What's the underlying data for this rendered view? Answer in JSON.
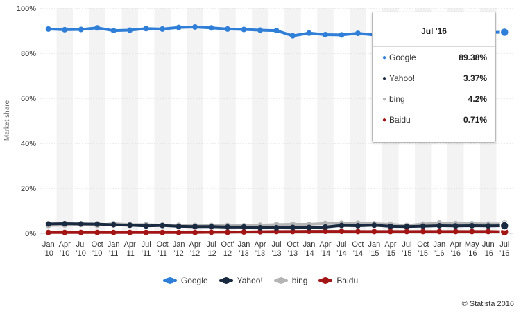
{
  "chart_data": {
    "type": "line",
    "ylabel": "Market share",
    "ylim": [
      0,
      100
    ],
    "yticks": [
      "0%",
      "20%",
      "40%",
      "60%",
      "80%",
      "100%"
    ],
    "grid": true,
    "legend": "bottom-center",
    "categories": [
      "Jan '10",
      "Apr '10",
      "Jul '10",
      "Oct '10",
      "Jan '11",
      "Apr '11",
      "Jul '11",
      "Oct '11",
      "Jan '12",
      "Apr '12",
      "Jul '12",
      "Oct' 12",
      "Jan '13",
      "Apr '13",
      "Jul '13",
      "Oct '13",
      "Jan '14",
      "Apr '14",
      "Jul '14",
      "Oct '14",
      "Jan '15",
      "Apr '15",
      "Jul '15",
      "Oct '15",
      "Jan '16",
      "Apr '16",
      "May '16",
      "Jun '16",
      "Jul '16"
    ],
    "tick_lines": [
      [
        "Jan",
        "'10"
      ],
      [
        "Apr",
        "'10"
      ],
      [
        "Jul",
        "'10"
      ],
      [
        "Oct",
        "'10"
      ],
      [
        "Jan",
        "'11"
      ],
      [
        "Apr",
        "'11"
      ],
      [
        "Jul",
        "'11"
      ],
      [
        "Oct",
        "'11"
      ],
      [
        "Jan",
        "'12"
      ],
      [
        "Apr",
        "'12"
      ],
      [
        "Jul",
        "'12"
      ],
      [
        "Oct'",
        "12"
      ],
      [
        "Jan",
        "'13"
      ],
      [
        "Apr",
        "'13"
      ],
      [
        "Jul",
        "'13"
      ],
      [
        "Oct",
        "'13"
      ],
      [
        "Jan",
        "'14"
      ],
      [
        "Apr",
        "'14"
      ],
      [
        "Jul",
        "'14"
      ],
      [
        "Oct",
        "'14"
      ],
      [
        "Jan",
        "'15"
      ],
      [
        "Apr",
        "'15"
      ],
      [
        "Jul",
        "'15"
      ],
      [
        "Oct",
        "'15"
      ],
      [
        "Jan",
        "'16"
      ],
      [
        "Apr",
        "'16"
      ],
      [
        "May",
        "'16"
      ],
      [
        "Jun",
        "'16"
      ],
      [
        "Jul",
        "'16"
      ]
    ],
    "series": [
      {
        "name": "Google",
        "color": "#2f7ed8",
        "values": [
          90.8,
          90.5,
          90.6,
          91.3,
          90.1,
          90.3,
          91,
          90.8,
          91.5,
          91.7,
          91.3,
          90.8,
          90.6,
          90.3,
          90.1,
          87.8,
          89,
          88.3,
          88.2,
          88.9,
          88.2,
          87.9,
          87.8,
          88.1,
          88.9,
          89.1,
          89.2,
          89.3,
          89.38
        ]
      },
      {
        "name": "Yahoo!",
        "color": "#1a2a40",
        "values": [
          4.2,
          4.3,
          4.2,
          4.1,
          3.8,
          3.6,
          3.3,
          3.5,
          3.1,
          3.0,
          3.0,
          2.8,
          2.8,
          2.5,
          2.5,
          2.6,
          2.6,
          2.8,
          3.5,
          3.4,
          3.6,
          3.1,
          3.0,
          3.2,
          3.4,
          3.3,
          3.4,
          3.3,
          3.37
        ]
      },
      {
        "name": "bing",
        "color": "#b5b5b5",
        "values": [
          3.5,
          3.7,
          3.9,
          3.6,
          4.3,
          3.9,
          3.9,
          3.6,
          3.6,
          3.5,
          3.5,
          3.5,
          3.4,
          3.6,
          3.9,
          4.0,
          4.0,
          4.4,
          4.5,
          4.5,
          4.3,
          4.0,
          3.5,
          4.1,
          4.6,
          4.4,
          4.3,
          4.2,
          4.2
        ]
      },
      {
        "name": "Baidu",
        "color": "#a31515",
        "values": [
          0.4,
          0.4,
          0.4,
          0.4,
          0.4,
          0.4,
          0.4,
          0.4,
          0.4,
          0.4,
          0.5,
          0.5,
          0.6,
          0.7,
          0.8,
          0.8,
          0.9,
          0.9,
          0.9,
          0.8,
          0.8,
          0.8,
          0.8,
          0.8,
          0.8,
          0.8,
          0.8,
          0.8,
          0.71
        ]
      }
    ]
  },
  "tooltip": {
    "title": "Jul '16",
    "rows": [
      {
        "name": "Google",
        "value": "89.38%",
        "color": "#2f7ed8"
      },
      {
        "name": "Yahoo!",
        "value": "3.37%",
        "color": "#1a2a40"
      },
      {
        "name": "bing",
        "value": "4.2%",
        "color": "#b5b5b5"
      },
      {
        "name": "Baidu",
        "value": "0.71%",
        "color": "#a31515"
      }
    ]
  },
  "credit": "© Statista 2016"
}
